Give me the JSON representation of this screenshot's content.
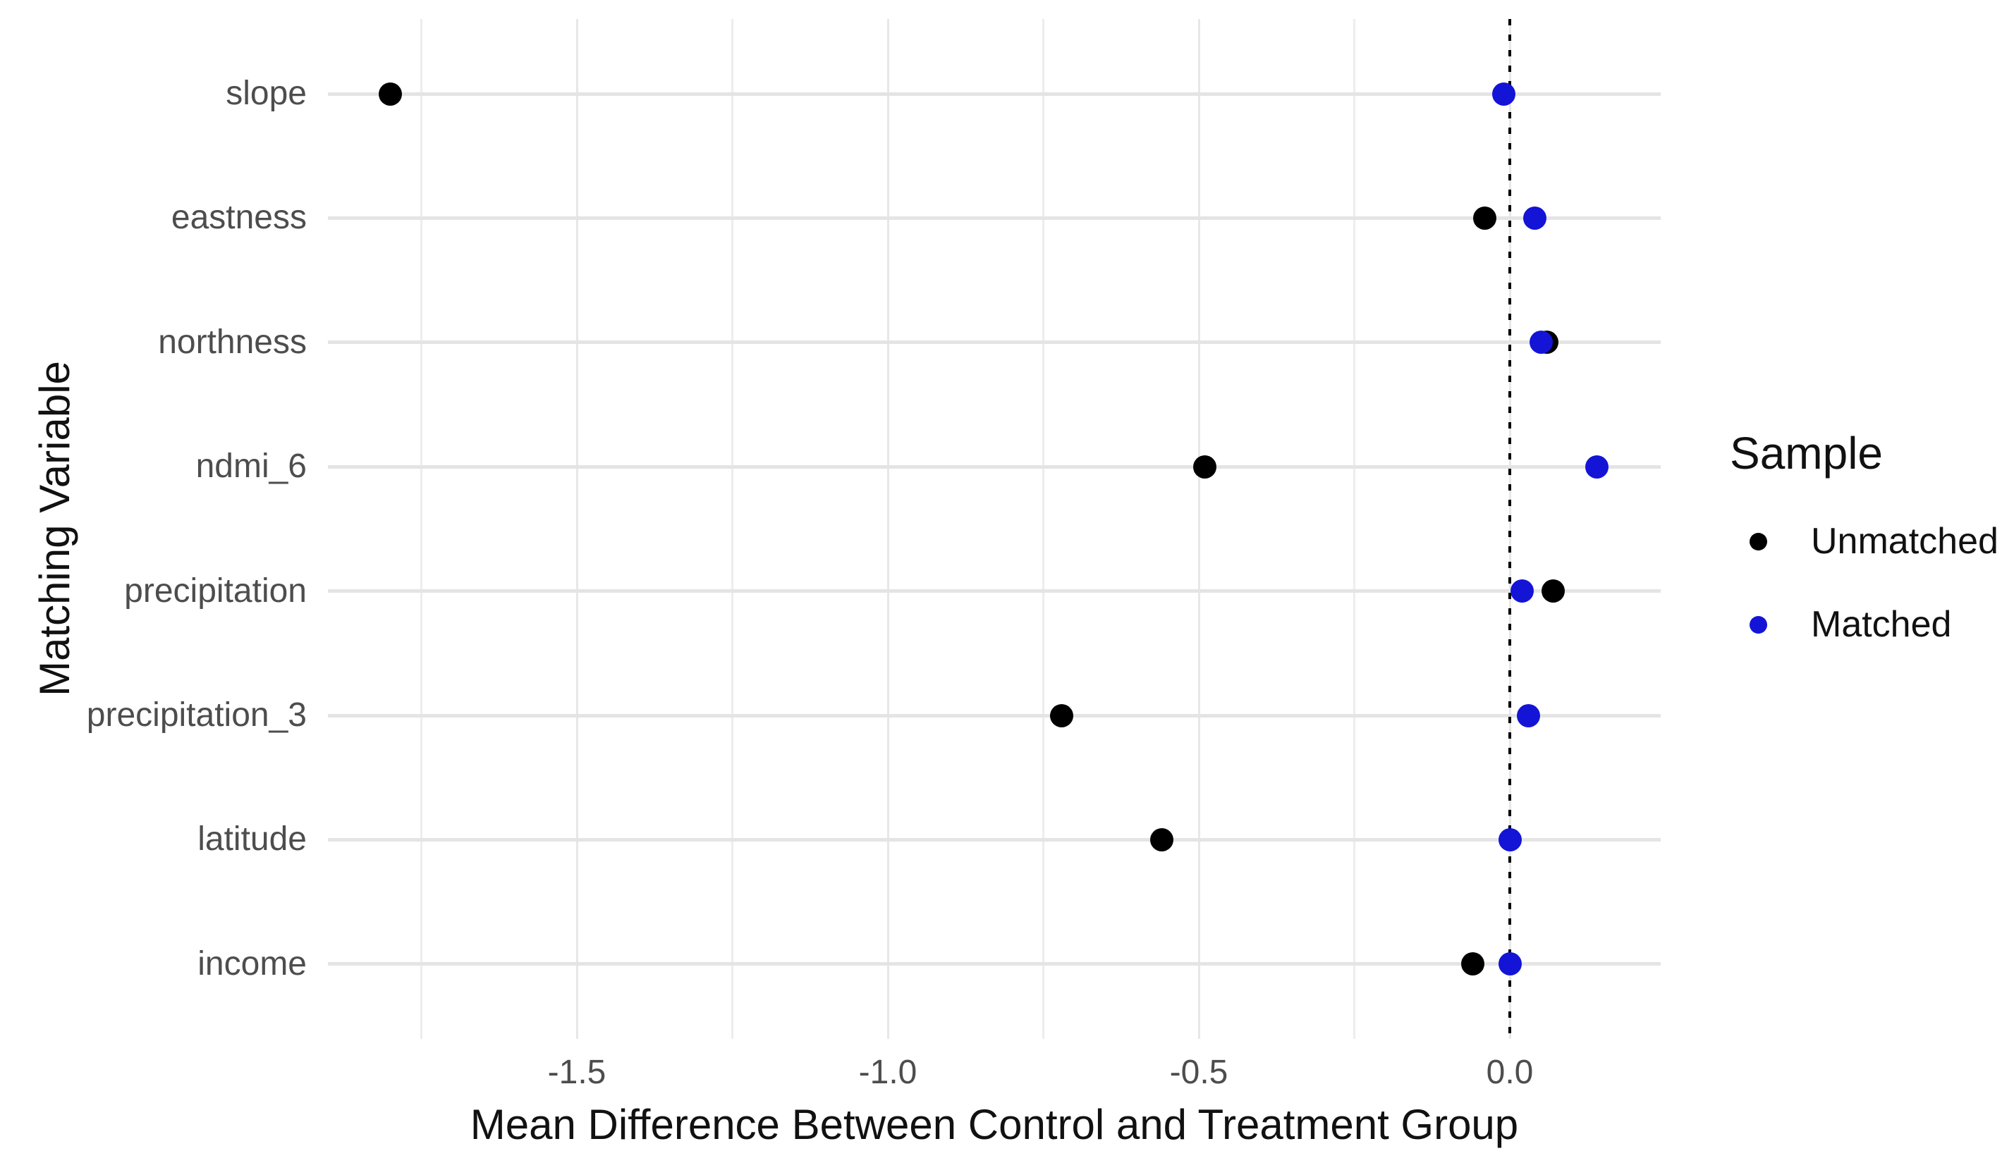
{
  "chart_data": {
    "type": "scatter",
    "title": "",
    "xlabel": "Mean Difference Between Control and Treatment Group",
    "ylabel": "Matching Variable",
    "categories": [
      "slope",
      "eastness",
      "northness",
      "ndmi_6",
      "precipitation",
      "precipitation_3",
      "latitude",
      "income"
    ],
    "series": [
      {
        "name": "Unmatched",
        "color": "#000000",
        "values": [
          -1.8,
          -0.04,
          0.06,
          -0.49,
          0.07,
          -0.72,
          -0.56,
          -0.06
        ]
      },
      {
        "name": "Matched",
        "color": "#1414d6",
        "values": [
          -0.01,
          0.04,
          0.05,
          0.14,
          0.02,
          0.03,
          0.0,
          0.0
        ]
      }
    ],
    "x_axis": {
      "ticks": [
        -1.5,
        -1.0,
        -0.5,
        0.0
      ],
      "tick_labels": [
        "-1.5",
        "-1.0",
        "-0.5",
        "0.0"
      ],
      "minor_gridlines": [
        -1.75,
        -1.25,
        -0.75,
        -0.25
      ],
      "range": [
        -1.9,
        0.24
      ]
    },
    "reference_line": {
      "x": 0,
      "style": "dotted",
      "color": "#000000"
    },
    "legend": {
      "title": "Sample",
      "position": "right",
      "entries": [
        {
          "label": "Unmatched",
          "color": "#000000"
        },
        {
          "label": "Matched",
          "color": "#1414d6"
        }
      ]
    },
    "grid": true
  },
  "colors": {
    "background": "#ffffff",
    "gridline_major": "#e4e4e4",
    "gridline_minor": "#ededed",
    "axis_text": "#4d4d4d",
    "title_text": "#111111"
  }
}
